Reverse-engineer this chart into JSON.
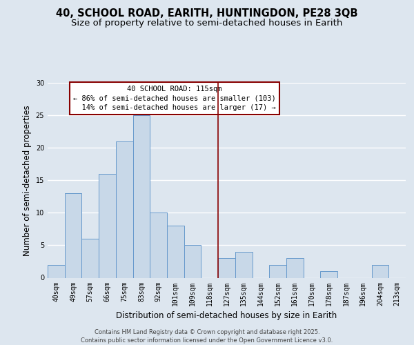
{
  "title_line1": "40, SCHOOL ROAD, EARITH, HUNTINGDON, PE28 3QB",
  "title_line2": "Size of property relative to semi-detached houses in Earith",
  "xlabel": "Distribution of semi-detached houses by size in Earith",
  "ylabel": "Number of semi-detached properties",
  "categories": [
    "40sqm",
    "49sqm",
    "57sqm",
    "66sqm",
    "75sqm",
    "83sqm",
    "92sqm",
    "101sqm",
    "109sqm",
    "118sqm",
    "127sqm",
    "135sqm",
    "144sqm",
    "152sqm",
    "161sqm",
    "170sqm",
    "178sqm",
    "187sqm",
    "196sqm",
    "204sqm",
    "213sqm"
  ],
  "values": [
    2,
    13,
    6,
    16,
    21,
    25,
    10,
    8,
    5,
    0,
    3,
    4,
    0,
    2,
    3,
    0,
    1,
    0,
    0,
    2,
    0
  ],
  "bar_color": "#c8d8e8",
  "bar_edge_color": "#6699cc",
  "vline_x": 9.5,
  "vline_color": "#880000",
  "annotation_text": "40 SCHOOL ROAD: 115sqm\n← 86% of semi-detached houses are smaller (103)\n  14% of semi-detached houses are larger (17) →",
  "annotation_box_color": "#880000",
  "annotation_bg": "#ffffff",
  "ylim": [
    0,
    30
  ],
  "yticks": [
    0,
    5,
    10,
    15,
    20,
    25,
    30
  ],
  "grid_color": "#ffffff",
  "bg_color": "#dde6ef",
  "fig_bg_color": "#dde6ef",
  "footer": "Contains HM Land Registry data © Crown copyright and database right 2025.\nContains public sector information licensed under the Open Government Licence v3.0.",
  "title_fontsize": 10.5,
  "subtitle_fontsize": 9.5,
  "axis_label_fontsize": 8.5,
  "tick_fontsize": 7,
  "annotation_fontsize": 7.5,
  "footer_fontsize": 6
}
